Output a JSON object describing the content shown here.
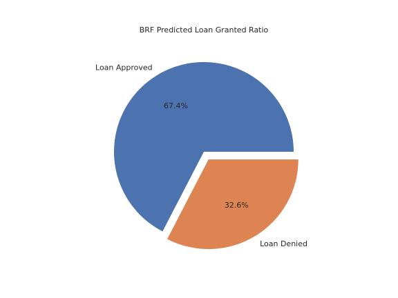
{
  "chart_data": {
    "type": "pie",
    "title": "BRF Predicted Loan Granted Ratio",
    "slices": [
      {
        "label": "Loan Approved",
        "value": 67.4,
        "pct_label": "67.4%",
        "color": "#4c72b0",
        "exploded": false
      },
      {
        "label": "Loan Denied",
        "value": 32.6,
        "pct_label": "32.6%",
        "color": "#dd8452",
        "exploded": true
      }
    ],
    "start_angle_deg": 0,
    "direction": "counterclockwise"
  }
}
